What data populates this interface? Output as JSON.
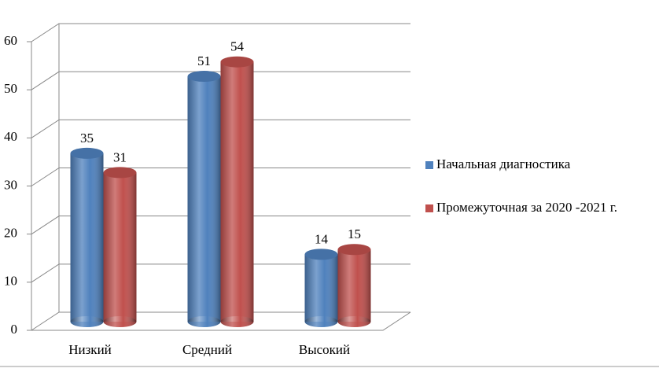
{
  "chart_data": {
    "type": "bar",
    "categories": [
      "Низкий",
      "Средний",
      "Высокий"
    ],
    "series": [
      {
        "name": "Начальная диагностика",
        "color": "#4f81bd",
        "values": [
          35,
          51,
          14
        ]
      },
      {
        "name": "Промежуточная за 2020 -2021 г.",
        "color": "#c0504d",
        "values": [
          31,
          54,
          15
        ]
      }
    ],
    "ylim": [
      0,
      60
    ],
    "yticks": [
      0,
      10,
      20,
      30,
      40,
      50,
      60
    ],
    "grid": true,
    "legend": "right"
  }
}
